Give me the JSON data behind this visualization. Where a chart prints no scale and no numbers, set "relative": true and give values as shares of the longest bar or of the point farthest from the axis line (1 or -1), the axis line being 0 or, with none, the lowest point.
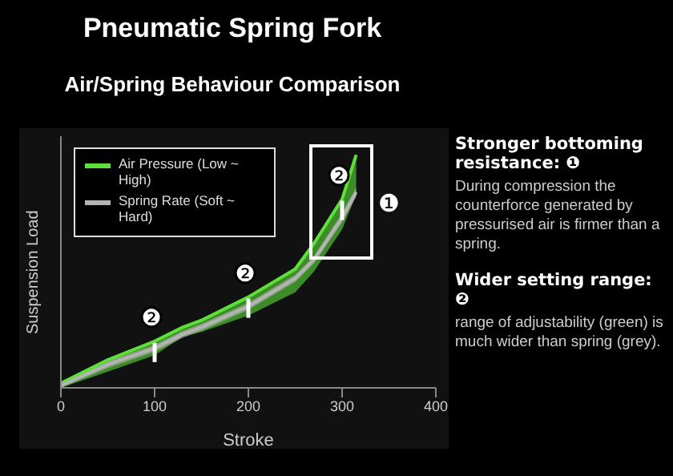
{
  "chart_data": {
    "type": "line",
    "title": "Pneumatic Spring Fork",
    "subtitle": "Air/Spring Behaviour Comparison",
    "xlabel": "Stroke",
    "ylabel": "Suspension Load",
    "relative": true,
    "xlim": [
      0,
      400
    ],
    "xticks": [
      0,
      100,
      200,
      300,
      400
    ],
    "grid": false,
    "legend": "top left",
    "marker": "none",
    "line_style": "solid",
    "series": [
      {
        "name": "Air Pressure (Low ~ High)",
        "color": "#5ee03a",
        "x": [
          0,
          50,
          100,
          130,
          150,
          200,
          250,
          270,
          300,
          315
        ],
        "values": [
          0.02,
          0.12,
          0.2,
          0.26,
          0.29,
          0.39,
          0.51,
          0.62,
          0.81,
          1.0
        ],
        "lower": [
          0,
          0.07,
          0.14,
          0.22,
          0.24,
          0.31,
          0.41,
          0.5,
          0.68,
          0.83
        ],
        "upper": [
          0.02,
          0.12,
          0.2,
          0.26,
          0.29,
          0.39,
          0.51,
          0.62,
          0.81,
          1.0
        ]
      },
      {
        "name": "Spring Rate (Soft ~ Hard)",
        "color": "#b4b4b4",
        "x": [
          0,
          50,
          100,
          130,
          150,
          200,
          250,
          270,
          300,
          315
        ],
        "values": [
          0.01,
          0.1,
          0.17,
          0.23,
          0.26,
          0.35,
          0.47,
          0.55,
          0.73,
          0.84
        ],
        "lower": [
          0,
          0.085,
          0.155,
          0.215,
          0.245,
          0.335,
          0.455,
          0.535,
          0.71,
          0.82
        ],
        "upper": [
          0.02,
          0.115,
          0.185,
          0.245,
          0.275,
          0.365,
          0.485,
          0.565,
          0.75,
          0.86
        ]
      }
    ],
    "annotations": [
      {
        "text": "❷",
        "x": 100,
        "y": 0.2
      },
      {
        "text": "❷",
        "x": 200,
        "y": 0.39
      },
      {
        "text": "❷",
        "x": 300,
        "y": 0.81
      },
      "❶",
      "Stronger bottoming resistance: ❶",
      "During compression the counterforce generated by pressurised air is firmer than a spring.",
      "Wider setting range: ❷",
      "range of adjustability (green) is much wider than spring (grey)."
    ]
  }
}
